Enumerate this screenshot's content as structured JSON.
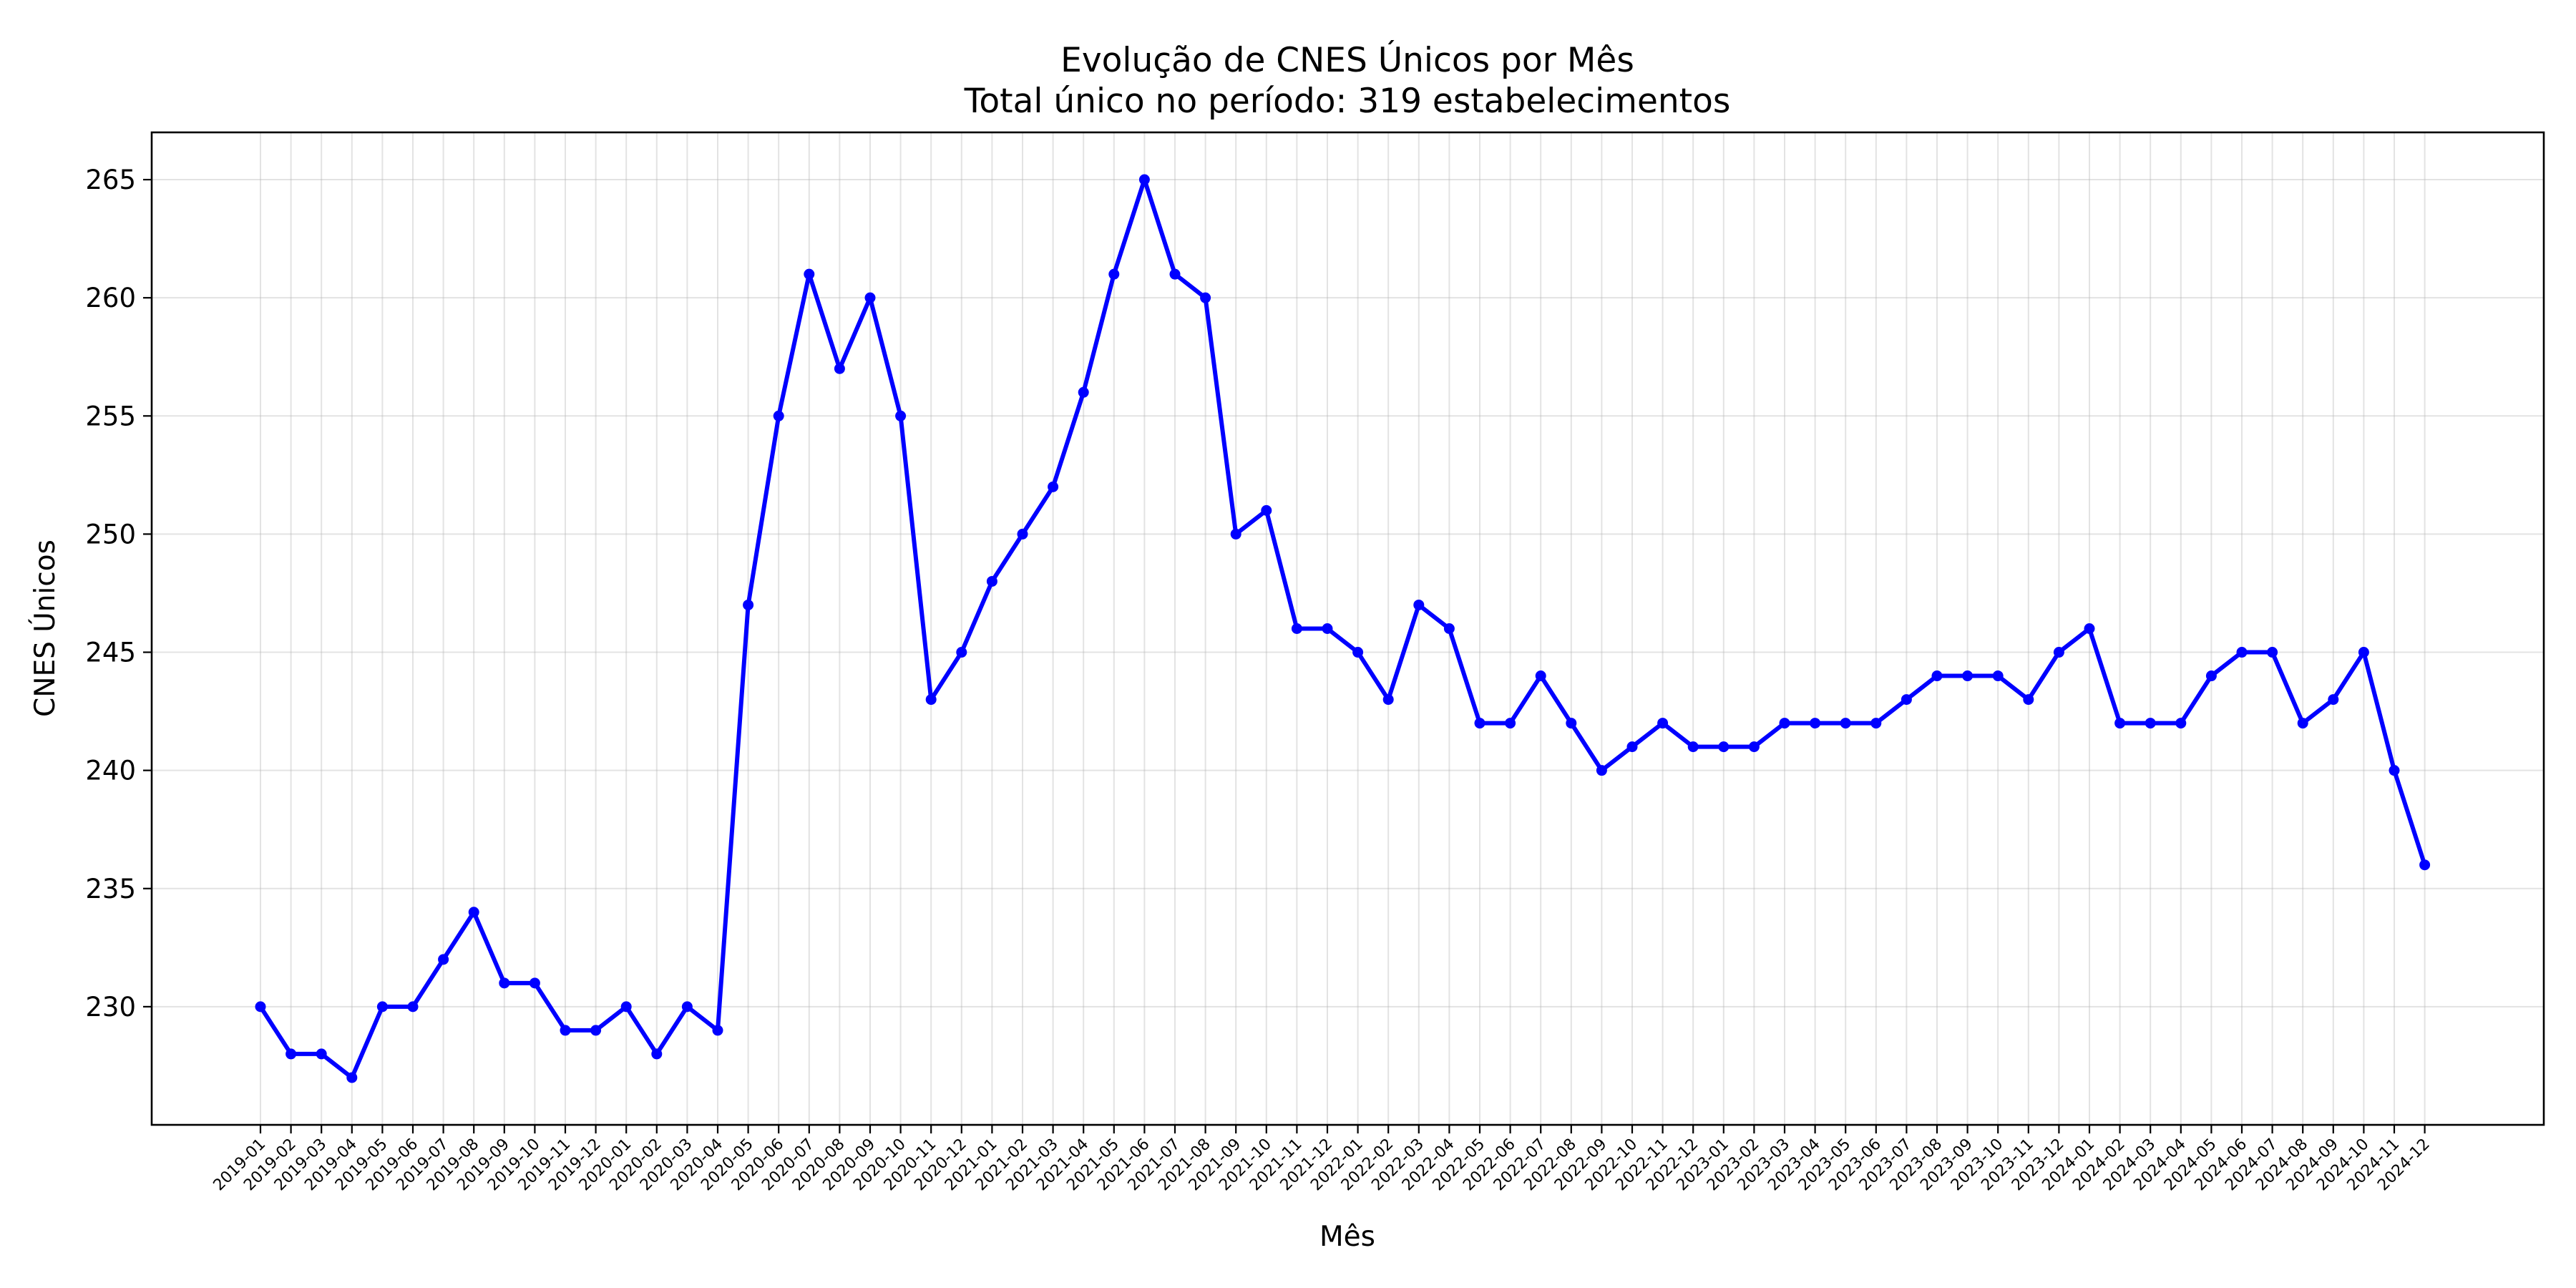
{
  "chart_data": {
    "type": "line",
    "title": "Evolução de CNES Únicos por Mês",
    "subtitle": "Total único no período: 319 estabelecimentos",
    "xlabel": "Mês",
    "ylabel": "CNES Únicos",
    "ylim": [
      225,
      267
    ],
    "yticks": [
      230,
      235,
      240,
      245,
      250,
      255,
      260,
      265
    ],
    "grid": true,
    "line_color": "#0000ff",
    "marker": "circle",
    "categories": [
      "2019-01",
      "2019-02",
      "2019-03",
      "2019-04",
      "2019-05",
      "2019-06",
      "2019-07",
      "2019-08",
      "2019-09",
      "2019-10",
      "2019-11",
      "2019-12",
      "2020-01",
      "2020-02",
      "2020-03",
      "2020-04",
      "2020-05",
      "2020-06",
      "2020-07",
      "2020-08",
      "2020-09",
      "2020-10",
      "2020-11",
      "2020-12",
      "2021-01",
      "2021-02",
      "2021-03",
      "2021-04",
      "2021-05",
      "2021-06",
      "2021-07",
      "2021-08",
      "2021-09",
      "2021-10",
      "2021-11",
      "2021-12",
      "2022-01",
      "2022-02",
      "2022-03",
      "2022-04",
      "2022-05",
      "2022-06",
      "2022-07",
      "2022-08",
      "2022-09",
      "2022-10",
      "2022-11",
      "2022-12",
      "2023-01",
      "2023-02",
      "2023-03",
      "2023-04",
      "2023-05",
      "2023-06",
      "2023-07",
      "2023-08",
      "2023-09",
      "2023-10",
      "2023-11",
      "2023-12",
      "2024-01",
      "2024-02",
      "2024-03",
      "2024-04",
      "2024-05",
      "2024-06",
      "2024-07",
      "2024-08",
      "2024-09",
      "2024-10",
      "2024-11",
      "2024-12"
    ],
    "series": [
      {
        "values": [
          230,
          228,
          228,
          227,
          230,
          230,
          232,
          234,
          231,
          231,
          229,
          229,
          230,
          228,
          230,
          229,
          247,
          255,
          261,
          257,
          260,
          255,
          243,
          245,
          248,
          250,
          252,
          256,
          261,
          265,
          261,
          260,
          250,
          251,
          246,
          246,
          245,
          243,
          247,
          246,
          242,
          242,
          244,
          242,
          240,
          241,
          242,
          241,
          241,
          241,
          242,
          242,
          242,
          242,
          243,
          244,
          244,
          244,
          243,
          245,
          246,
          242,
          242,
          242,
          244,
          245,
          245,
          242,
          243,
          245,
          240,
          236
        ]
      }
    ]
  }
}
